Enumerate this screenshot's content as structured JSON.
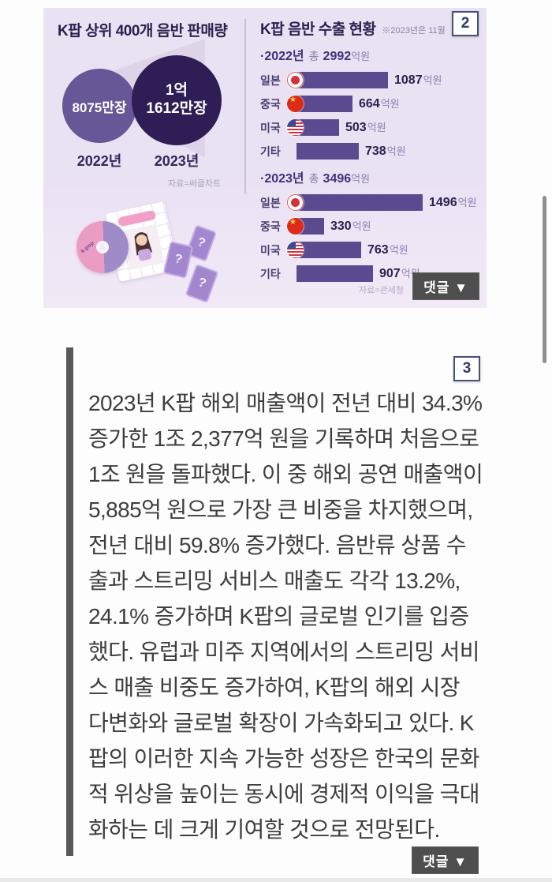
{
  "page": {
    "badges": {
      "image2": "2",
      "image3": "3"
    },
    "comment_button_label": "댓글 ▼"
  },
  "infographic": {
    "left": {
      "title": "K팝 상위 400개 음반 판매량",
      "circle_2022": {
        "value": "8075만장",
        "year": "2022년"
      },
      "circle_2023": {
        "value_line1": "1억",
        "value_line2": "1612만장",
        "year": "2023년"
      },
      "source": "자료=써클차트",
      "cd_label": "k-pop",
      "question_mark": "?"
    },
    "right": {
      "title": "K팝 음반 수출 현황",
      "note": "※2023년은 11월",
      "source": "자료=관세청",
      "sections": [
        {
          "year": "·2022년",
          "total_label": "총",
          "total_value": "2992",
          "unit": "억원",
          "rows": [
            {
              "country": "일본",
              "flag": "japan",
              "value": 1087,
              "unit": "억원"
            },
            {
              "country": "중국",
              "flag": "china",
              "value": 664,
              "unit": "억원"
            },
            {
              "country": "미국",
              "flag": "usa",
              "value": 503,
              "unit": "억원"
            },
            {
              "country": "기타",
              "flag": null,
              "value": 738,
              "unit": "억원"
            }
          ]
        },
        {
          "year": "·2023년",
          "total_label": "총",
          "total_value": "3496",
          "unit": "억원",
          "rows": [
            {
              "country": "일본",
              "flag": "japan",
              "value": 1496,
              "unit": "억원"
            },
            {
              "country": "중국",
              "flag": "china",
              "value": 330,
              "unit": "억원"
            },
            {
              "country": "미국",
              "flag": "usa",
              "value": 763,
              "unit": "억원"
            },
            {
              "country": "기타",
              "flag": null,
              "value": 907,
              "unit": "억원"
            }
          ]
        }
      ]
    }
  },
  "article": {
    "text": "2023년 K팝 해외 매출액이 전년 대비 34.3% 증가한 1조 2,377억 원을 기록하며 처음으로 1조 원을 돌파했다. 이 중 해외 공연 매출액이 5,885억 원으로 가장 큰 비중을 차지했으며, 전년 대비 59.8% 증가했다. 음반류 상품 수출과 스트리밍 서비스 매출도 각각 13.2%, 24.1% 증가하며 K팝의 글로벌 인기를 입증했다. 유럽과 미주 지역에서의 스트리밍 서비스 매출 비중도 증가하여, K팝의 해외 시장 다변화와 글로벌 확장이 가속화되고 있다. K팝의 이러한 지속 가능한 성장은 한국의 문화적 위상을 높이는 동시에 경제적 이익을 극대화하는 데 크게 기여할 것으로 전망된다."
  },
  "colors": {
    "infographic_bg": "#e9e2f2",
    "bar_purple": "#5b4a8f",
    "circle_2022": "#675796",
    "circle_2023": "#2f1d55",
    "title_navy": "#2b2150",
    "comment_button_bg": "#4e4e4e"
  },
  "chart_data": [
    {
      "type": "bar",
      "title": "K팝 상위 400개 음반 판매량",
      "categories": [
        "2022년",
        "2023년"
      ],
      "values": [
        8075,
        11612
      ],
      "unit": "만장",
      "value_labels": [
        "8075만장",
        "1억 1612만장"
      ],
      "source": "자료=써클차트",
      "legend_position": "none"
    },
    {
      "type": "bar",
      "title": "K팝 음반 수출 현황 — 2022년",
      "subtitle": "총 2992억원",
      "categories": [
        "일본",
        "중국",
        "미국",
        "기타"
      ],
      "values": [
        1087,
        664,
        503,
        738
      ],
      "unit": "억원",
      "xlim": [
        0,
        1500
      ],
      "note": "※2023년은 11월",
      "source": "자료=관세청"
    },
    {
      "type": "bar",
      "title": "K팝 음반 수출 현황 — 2023년",
      "subtitle": "총 3496억원",
      "categories": [
        "일본",
        "중국",
        "미국",
        "기타"
      ],
      "values": [
        1496,
        330,
        763,
        907
      ],
      "unit": "억원",
      "xlim": [
        0,
        1500
      ],
      "note": "※2023년은 11월",
      "source": "자료=관세청"
    }
  ]
}
